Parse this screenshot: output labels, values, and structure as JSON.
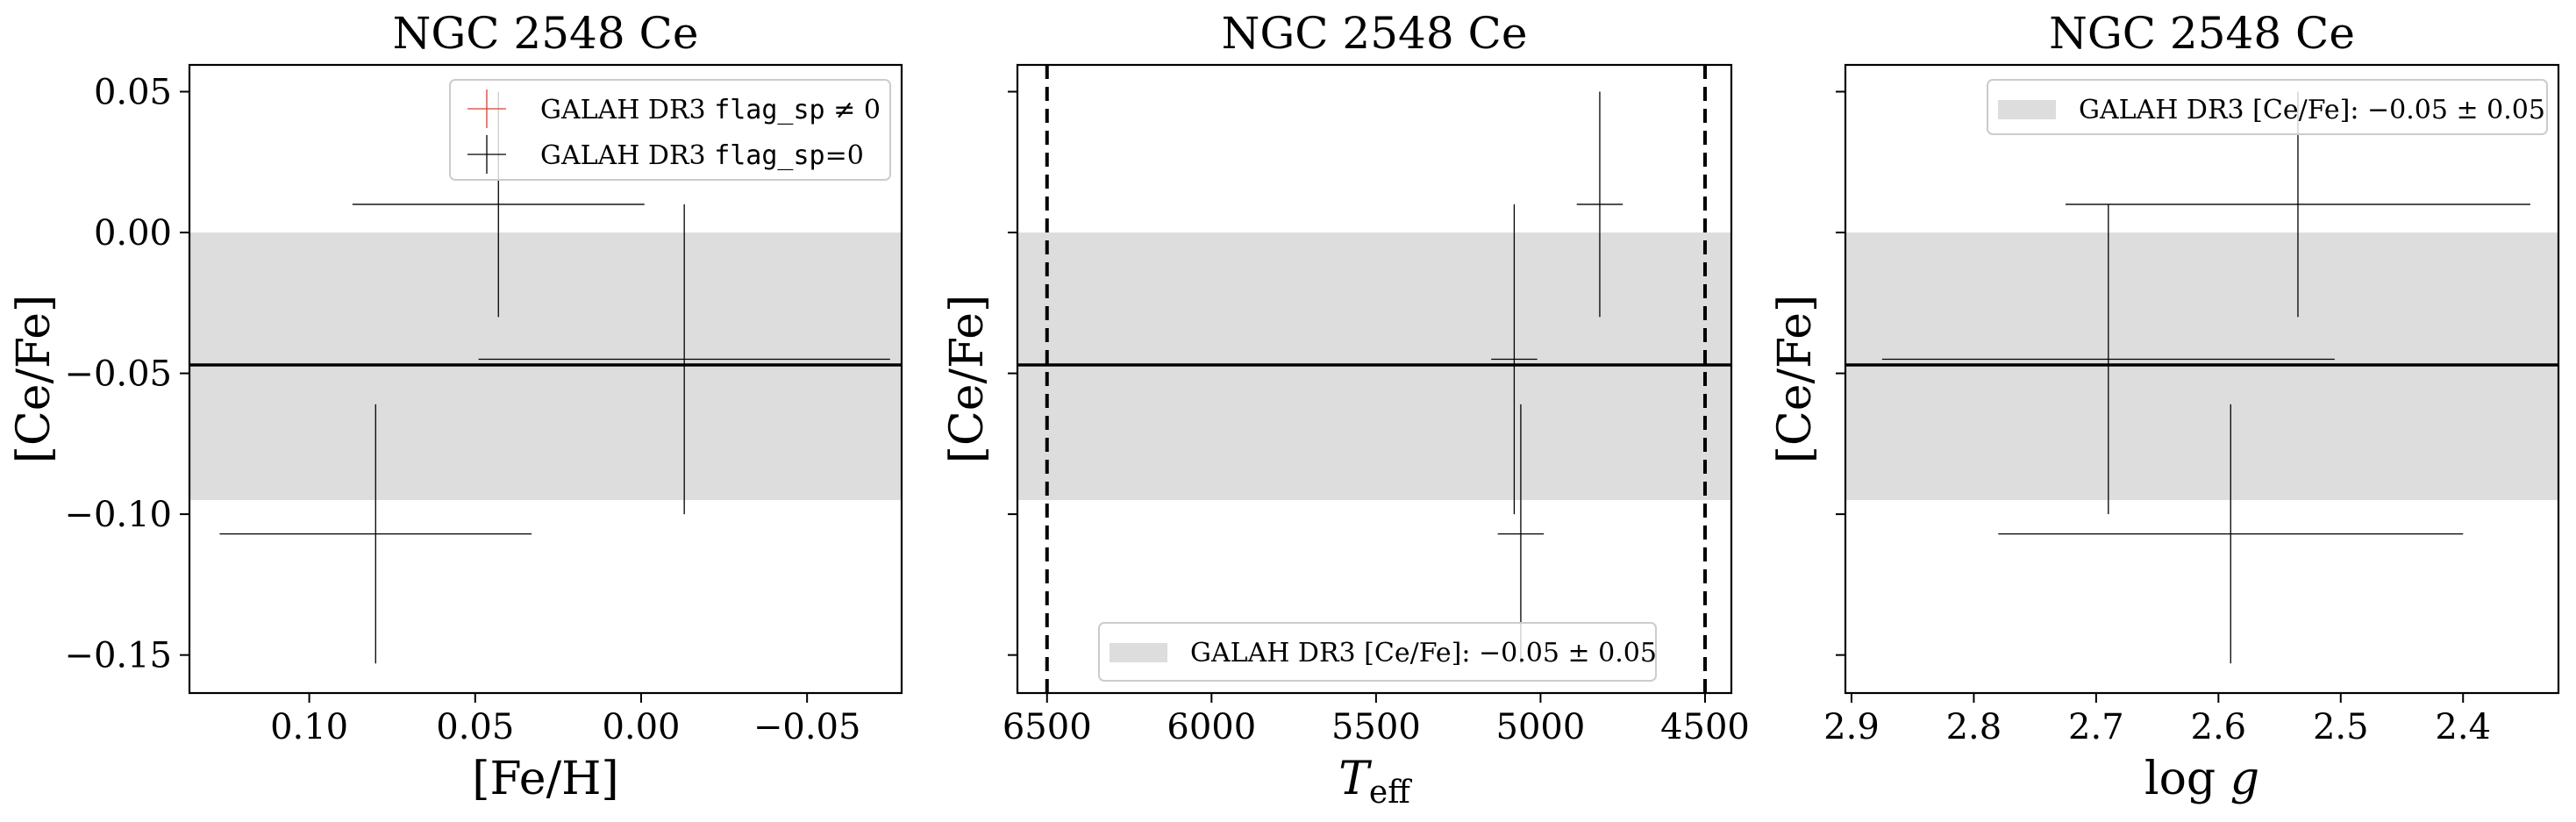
{
  "colors": {
    "band": "#dddddd",
    "errorbar": "#000000",
    "flagged": "#e8392b",
    "line": "#000000"
  },
  "chart_data": [
    {
      "type": "scatter",
      "title": "NGC 2548 Ce",
      "xlabel": "[Fe/H]",
      "ylabel": "[Ce/Fe]",
      "x_inverted": true,
      "xlim": [
        0.1361,
        -0.0785
      ],
      "ylim": [
        -0.1635,
        0.0595
      ],
      "xticks": [
        0.1,
        0.05,
        0.0,
        -0.05
      ],
      "xtick_labels": [
        "0.10",
        "0.05",
        "0.00",
        "−0.05"
      ],
      "yticks": [
        0.05,
        0.0,
        -0.05,
        -0.1,
        -0.15
      ],
      "ytick_labels": [
        "0.05",
        "0.00",
        "−0.05",
        "−0.10",
        "−0.15"
      ],
      "band": {
        "center": -0.047,
        "low": -0.095,
        "high": 0.0
      },
      "points": [
        {
          "x": 0.043,
          "y": 0.01,
          "xerr": 0.044,
          "yerr": 0.04
        },
        {
          "x": -0.013,
          "y": -0.045,
          "xerr": 0.062,
          "yerr": 0.055
        },
        {
          "x": 0.08,
          "y": -0.107,
          "xerr": 0.047,
          "yerr": 0.046
        }
      ],
      "legend": {
        "location": "upper right",
        "entries": [
          {
            "label_prefix": "GALAH DR3 ",
            "label_code": "flag_sp",
            "label_suffix": " ≠ 0",
            "style": "flagged"
          },
          {
            "label_prefix": "GALAH DR3 ",
            "label_code": "flag_sp",
            "label_suffix": "=0",
            "style": "errorbar"
          }
        ]
      }
    },
    {
      "type": "scatter",
      "title": "NGC 2548 Ce",
      "xlabel": "T",
      "xlabel_sub": "eff",
      "ylabel": "[Ce/Fe]",
      "x_inverted": true,
      "xlim": [
        6590,
        4420
      ],
      "ylim": [
        -0.1635,
        0.0595
      ],
      "xticks": [
        6500,
        6000,
        5500,
        5000,
        4500
      ],
      "xtick_labels": [
        "6500",
        "6000",
        "5500",
        "5000",
        "4500"
      ],
      "band": {
        "center": -0.047,
        "low": -0.095,
        "high": 0.0
      },
      "vlines": [
        6500,
        4500
      ],
      "points": [
        {
          "x": 4820,
          "y": 0.01,
          "xerr": 70,
          "yerr": 0.04
        },
        {
          "x": 5080,
          "y": -0.045,
          "xerr": 70,
          "yerr": 0.055
        },
        {
          "x": 5060,
          "y": -0.107,
          "xerr": 70,
          "yerr": 0.046
        }
      ],
      "legend": {
        "location": "lower center",
        "entries": [
          {
            "label_prefix": "GALAH DR3 [Ce/Fe]: ",
            "label_math": "−0.05 ± 0.05",
            "style": "band"
          }
        ]
      }
    },
    {
      "type": "scatter",
      "title": "NGC 2548 Ce",
      "xlabel": "log g",
      "ylabel": "[Ce/Fe]",
      "x_inverted": true,
      "xlim": [
        2.905,
        2.322
      ],
      "ylim": [
        -0.1635,
        0.0595
      ],
      "xticks": [
        2.9,
        2.8,
        2.7,
        2.6,
        2.5,
        2.4
      ],
      "xtick_labels": [
        "2.9",
        "2.8",
        "2.7",
        "2.6",
        "2.5",
        "2.4"
      ],
      "band": {
        "center": -0.047,
        "low": -0.095,
        "high": 0.0
      },
      "points": [
        {
          "x": 2.535,
          "y": 0.01,
          "xerr": 0.19,
          "yerr": 0.04
        },
        {
          "x": 2.69,
          "y": -0.045,
          "xerr": 0.185,
          "yerr": 0.055
        },
        {
          "x": 2.59,
          "y": -0.107,
          "xerr": 0.19,
          "yerr": 0.046
        }
      ],
      "legend": {
        "location": "upper right",
        "entries": [
          {
            "label_prefix": "GALAH DR3 [Ce/Fe]: ",
            "label_math": "−0.05 ± 0.05",
            "style": "band"
          }
        ]
      }
    }
  ]
}
